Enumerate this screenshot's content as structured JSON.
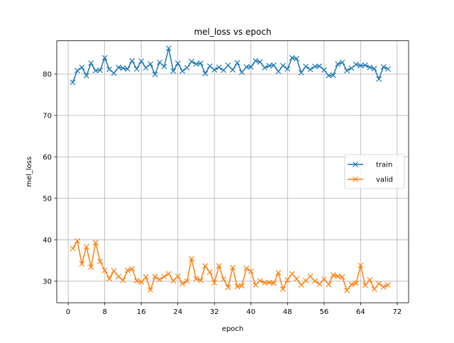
{
  "chart_data": {
    "type": "line",
    "title": "mel_loss vs epoch",
    "xlabel": "epoch",
    "ylabel": "mel_loss",
    "xlim": [
      -2.5,
      74.5
    ],
    "ylim": [
      24.8,
      88.0
    ],
    "xticks": [
      0,
      8,
      16,
      24,
      32,
      40,
      48,
      56,
      64,
      72
    ],
    "yticks": [
      30,
      40,
      50,
      60,
      70,
      80
    ],
    "grid": true,
    "legend_position": "center-right",
    "x": [
      1,
      2,
      3,
      4,
      5,
      6,
      7,
      8,
      9,
      10,
      11,
      12,
      13,
      14,
      15,
      16,
      17,
      18,
      19,
      20,
      21,
      22,
      23,
      24,
      25,
      26,
      27,
      28,
      29,
      30,
      31,
      32,
      33,
      34,
      35,
      36,
      37,
      38,
      39,
      40,
      41,
      42,
      43,
      44,
      45,
      46,
      47,
      48,
      49,
      50,
      51,
      52,
      53,
      54,
      55,
      56,
      57,
      58,
      59,
      60,
      61,
      62,
      63,
      64,
      65,
      66,
      67,
      68,
      69,
      70
    ],
    "series": [
      {
        "name": "train",
        "color": "#1f77b4",
        "marker": "x",
        "values": [
          78.0,
          80.8,
          81.6,
          79.6,
          82.6,
          80.8,
          80.9,
          83.9,
          81.1,
          80.2,
          81.6,
          81.4,
          81.2,
          83.2,
          81.2,
          83.1,
          81.5,
          82.4,
          79.9,
          82.8,
          81.8,
          86.2,
          80.7,
          82.6,
          80.7,
          81.5,
          83.0,
          82.4,
          82.6,
          80.1,
          81.9,
          81.0,
          81.6,
          80.9,
          82.1,
          81.0,
          82.7,
          80.4,
          81.7,
          81.7,
          83.2,
          82.9,
          81.5,
          82.0,
          82.1,
          80.6,
          82.0,
          81.2,
          83.9,
          83.7,
          80.3,
          81.8,
          81.1,
          81.8,
          81.9,
          81.0,
          79.6,
          79.7,
          82.4,
          82.8,
          80.8,
          81.4,
          82.3,
          82.0,
          82.1,
          81.6,
          81.3,
          78.8,
          81.7,
          81.2
        ]
      },
      {
        "name": "valid",
        "color": "#ff7f0e",
        "marker": "x",
        "values": [
          37.9,
          39.7,
          34.2,
          38.3,
          33.4,
          39.3,
          34.8,
          32.6,
          30.6,
          32.5,
          31.1,
          30.2,
          32.6,
          33.0,
          30.1,
          29.8,
          31.0,
          27.9,
          31.1,
          30.4,
          31.1,
          31.8,
          30.1,
          31.2,
          29.4,
          30.0,
          35.4,
          30.6,
          30.2,
          33.7,
          32.2,
          29.6,
          33.7,
          30.5,
          28.5,
          33.3,
          28.7,
          28.9,
          33.1,
          32.4,
          29.1,
          30.1,
          29.6,
          29.7,
          29.5,
          32.0,
          28.1,
          30.3,
          31.8,
          30.6,
          29.1,
          30.1,
          31.2,
          30.0,
          29.3,
          30.5,
          29.2,
          31.5,
          31.2,
          31.0,
          27.8,
          29.2,
          29.5,
          33.8,
          29.0,
          30.3,
          28.1,
          29.4,
          28.6,
          29.1
        ]
      }
    ]
  }
}
